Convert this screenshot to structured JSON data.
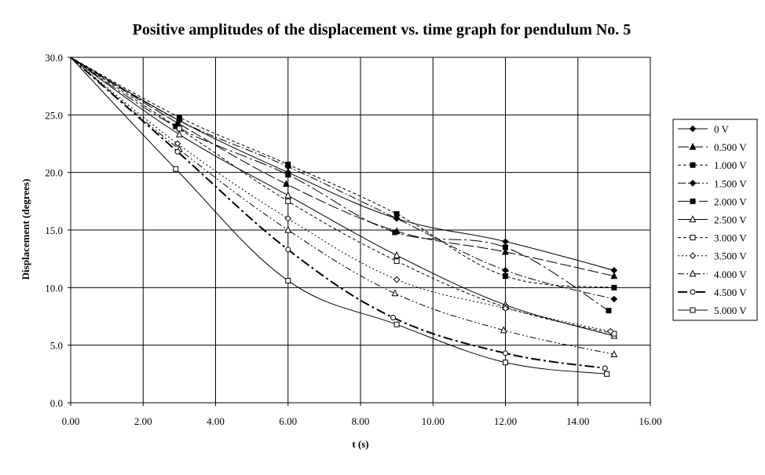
{
  "chart_data": {
    "type": "line",
    "title": "Positive amplitudes of the displacement vs. time graph for pendulum No. 5",
    "xlabel": "t (s)",
    "ylabel": "Displacement (degrees)",
    "xlim": [
      0,
      16
    ],
    "ylim": [
      0,
      30
    ],
    "x_ticks": [
      "0.00",
      "2.00",
      "4.00",
      "6.00",
      "8.00",
      "10.00",
      "12.00",
      "14.00",
      "16.00"
    ],
    "y_ticks": [
      "0.0",
      "5.0",
      "10.0",
      "15.0",
      "20.0",
      "25.0",
      "30.0"
    ],
    "grid": "major gridlines on both axes",
    "legend_position": "right",
    "series": [
      {
        "name": "0 V",
        "marker": "diamond-filled",
        "dash": "solid",
        "points": [
          [
            0,
            30.0
          ],
          [
            3.0,
            24.5
          ],
          [
            6.0,
            20.0
          ],
          [
            9.0,
            16.0
          ],
          [
            12.0,
            14.0
          ],
          [
            15.0,
            11.5
          ]
        ]
      },
      {
        "name": "0.500 V",
        "marker": "triangle-filled",
        "dash": "long-dash",
        "points": [
          [
            0,
            30.0
          ],
          [
            2.95,
            24.3
          ],
          [
            5.95,
            19.0
          ],
          [
            9.0,
            14.9
          ],
          [
            12.0,
            13.1
          ],
          [
            15.0,
            11.0
          ]
        ]
      },
      {
        "name": "1.000 V",
        "marker": "square-filled",
        "dash": "short-dash",
        "points": [
          [
            0,
            30.0
          ],
          [
            3.0,
            24.8
          ],
          [
            6.0,
            20.7
          ],
          [
            9.0,
            16.4
          ],
          [
            12.0,
            11.0
          ],
          [
            15.0,
            10.0
          ]
        ]
      },
      {
        "name": "1.500 V",
        "marker": "diamond-filled",
        "dash": "dash-dot",
        "points": [
          [
            0,
            30.0
          ],
          [
            3.0,
            24.5
          ],
          [
            6.0,
            20.5
          ],
          [
            9.0,
            16.0
          ],
          [
            12.0,
            11.5
          ],
          [
            15.0,
            9.0
          ]
        ]
      },
      {
        "name": "2.000 V",
        "marker": "square-filled",
        "dash": "long-dash-dot",
        "points": [
          [
            0,
            30.0
          ],
          [
            2.9,
            24.0
          ],
          [
            6.0,
            19.8
          ],
          [
            8.95,
            14.8
          ],
          [
            12.0,
            13.5
          ],
          [
            14.85,
            8.0
          ]
        ]
      },
      {
        "name": "2.500 V",
        "marker": "triangle-open",
        "dash": "solid",
        "points": [
          [
            0,
            30.0
          ],
          [
            3.0,
            23.3
          ],
          [
            6.0,
            18.0
          ],
          [
            9.0,
            12.8
          ],
          [
            12.0,
            8.5
          ],
          [
            15.0,
            5.8
          ]
        ]
      },
      {
        "name": "3.000 V",
        "marker": "square-open",
        "dash": "short-dash",
        "points": [
          [
            0,
            30.0
          ],
          [
            3.0,
            23.8
          ],
          [
            6.0,
            17.5
          ],
          [
            9.0,
            12.3
          ],
          [
            12.0,
            8.3
          ],
          [
            15.0,
            6.0
          ]
        ]
      },
      {
        "name": "3.500 V",
        "marker": "diamond-open",
        "dash": "dotted",
        "points": [
          [
            0,
            30.0
          ],
          [
            2.95,
            22.5
          ],
          [
            6.0,
            16.0
          ],
          [
            9.0,
            10.7
          ],
          [
            12.0,
            8.2
          ],
          [
            14.9,
            6.2
          ]
        ]
      },
      {
        "name": "4.000 V",
        "marker": "triangle-open",
        "dash": "dash-dot-dot",
        "points": [
          [
            0,
            30.0
          ],
          [
            3.0,
            22.0
          ],
          [
            6.0,
            15.0
          ],
          [
            8.95,
            9.5
          ],
          [
            11.95,
            6.3
          ],
          [
            15.0,
            4.2
          ]
        ]
      },
      {
        "name": "4.500 V",
        "marker": "circle-open",
        "dash": "thick-dash-dot",
        "points": [
          [
            0,
            30.0
          ],
          [
            2.95,
            21.8
          ],
          [
            6.0,
            13.3
          ],
          [
            8.9,
            7.4
          ],
          [
            12.0,
            4.3
          ],
          [
            14.75,
            3.0
          ]
        ]
      },
      {
        "name": "5.000 V",
        "marker": "square-open",
        "dash": "solid",
        "points": [
          [
            0,
            30.0
          ],
          [
            2.9,
            20.3
          ],
          [
            6.0,
            10.6
          ],
          [
            9.0,
            6.8
          ],
          [
            12.0,
            3.5
          ],
          [
            14.8,
            2.5
          ]
        ]
      }
    ]
  }
}
